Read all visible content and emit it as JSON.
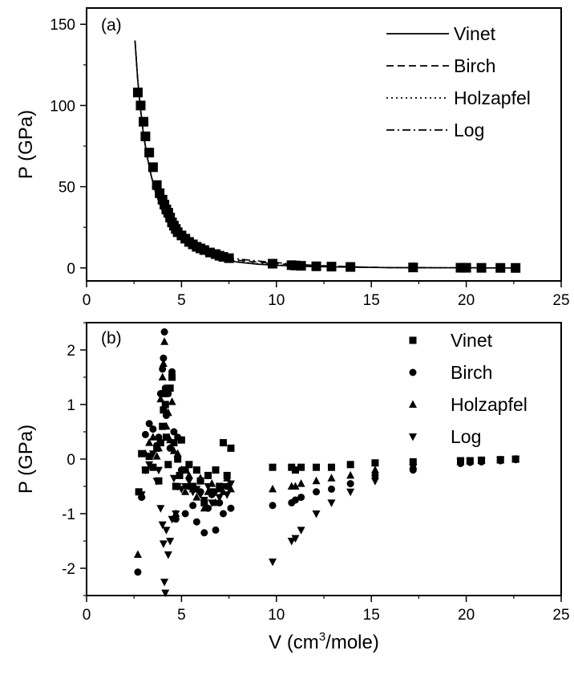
{
  "chart_data": [
    {
      "type": "line",
      "panel_label": "(a)",
      "ylabel": "P (GPa)",
      "xlabel": "",
      "xlim": [
        0,
        25
      ],
      "ylim": [
        -8,
        160
      ],
      "x_ticks": [
        "0",
        "5",
        "10",
        "15",
        "20",
        "25"
      ],
      "y_ticks": [
        "0",
        "50",
        "100",
        "150"
      ],
      "legend_position": "top-right",
      "series": [
        {
          "name": "Vinet",
          "style": "solid"
        },
        {
          "name": "Birch",
          "style": "dashed"
        },
        {
          "name": "Holzapfel",
          "style": "dotted"
        },
        {
          "name": "Log",
          "style": "dash-dot"
        }
      ],
      "curve": {
        "x": [
          2.55,
          2.7,
          2.85,
          3.0,
          3.2,
          3.4,
          3.6,
          3.8,
          4.0,
          4.3,
          4.6,
          5.0,
          5.5,
          6.0,
          6.5,
          7.0,
          7.5,
          8.0,
          9.0,
          10.0,
          11.0,
          12.0,
          14.0,
          16.0,
          18.0,
          20.0,
          22.0,
          22.8
        ],
        "y": [
          140,
          115,
          97,
          82,
          68,
          57,
          48,
          41,
          35,
          28,
          22.5,
          17,
          12.5,
          9.5,
          7.2,
          5.6,
          4.4,
          3.5,
          2.3,
          1.6,
          1.1,
          0.8,
          0.4,
          0.2,
          0.1,
          0.05,
          0.02,
          0.0
        ]
      },
      "data_points": {
        "x": [
          2.7,
          2.85,
          3.0,
          3.1,
          3.3,
          3.5,
          3.7,
          3.85,
          4.0,
          4.1,
          4.2,
          4.3,
          4.4,
          4.5,
          4.6,
          4.7,
          4.8,
          5.0,
          5.2,
          5.4,
          5.6,
          5.8,
          6.0,
          6.2,
          6.5,
          6.8,
          7.0,
          7.2,
          7.5,
          9.8,
          10.8,
          11.0,
          11.3,
          12.1,
          12.9,
          13.9,
          17.2,
          19.7,
          20.0,
          20.8,
          21.8,
          22.6
        ],
        "y": [
          108,
          100,
          90,
          81,
          71,
          62,
          51,
          46,
          42,
          39,
          36,
          34,
          31,
          28,
          26,
          24,
          22,
          20,
          18,
          16,
          14.5,
          13,
          12,
          11,
          9.5,
          8.5,
          7.5,
          6.8,
          6,
          2.6,
          1.7,
          1.5,
          1.3,
          1.0,
          0.8,
          0.6,
          0.3,
          0.1,
          0.1,
          0.05,
          0.02,
          0.0
        ]
      },
      "birch_offset": [
        [
          6,
          0.3
        ],
        [
          7,
          0.8
        ],
        [
          8,
          1.2
        ],
        [
          9,
          1.2
        ],
        [
          10,
          1.0
        ],
        [
          11,
          0.7
        ],
        [
          12,
          0.5
        ],
        [
          14,
          0.2
        ]
      ],
      "log_offset": [
        [
          5,
          0.3
        ],
        [
          6,
          1.0
        ],
        [
          7,
          1.6
        ],
        [
          8,
          2.0
        ],
        [
          9,
          2.0
        ],
        [
          10,
          1.7
        ],
        [
          11,
          1.2
        ],
        [
          12,
          0.8
        ],
        [
          14,
          0.3
        ]
      ]
    },
    {
      "type": "scatter",
      "panel_label": "(b)",
      "ylabel": "P (GPa)",
      "xlabel": "V (cm3/mole)",
      "xlim": [
        0,
        25
      ],
      "ylim": [
        -2.5,
        2.5
      ],
      "x_ticks": [
        "0",
        "5",
        "10",
        "15",
        "20",
        "25"
      ],
      "y_ticks": [
        "-2",
        "-1",
        "0",
        "1",
        "2"
      ],
      "legend_position": "top-right",
      "series": [
        {
          "name": "Vinet",
          "marker": "square",
          "points": [
            [
              2.75,
              -0.6
            ],
            [
              2.9,
              0.1
            ],
            [
              3.1,
              -0.2
            ],
            [
              3.3,
              0.05
            ],
            [
              3.5,
              -0.15
            ],
            [
              3.7,
              0.2
            ],
            [
              3.8,
              -0.4
            ],
            [
              3.9,
              0.3
            ],
            [
              4.0,
              0.6
            ],
            [
              4.05,
              0.9
            ],
            [
              4.1,
              1.2
            ],
            [
              4.15,
              1.0
            ],
            [
              4.2,
              0.4
            ],
            [
              4.3,
              -0.1
            ],
            [
              4.4,
              1.3
            ],
            [
              4.5,
              1.5
            ],
            [
              4.6,
              0.3
            ],
            [
              4.7,
              -0.5
            ],
            [
              4.8,
              0.0
            ],
            [
              4.9,
              -0.3
            ],
            [
              5.0,
              0.35
            ],
            [
              5.2,
              -0.2
            ],
            [
              5.4,
              -0.1
            ],
            [
              5.6,
              -0.5
            ],
            [
              5.8,
              -0.2
            ],
            [
              6.0,
              -0.4
            ],
            [
              6.2,
              -0.8
            ],
            [
              6.4,
              -0.3
            ],
            [
              6.6,
              -0.6
            ],
            [
              6.8,
              -0.2
            ],
            [
              7.0,
              -0.5
            ],
            [
              7.2,
              0.3
            ],
            [
              7.4,
              -0.3
            ],
            [
              7.6,
              0.2
            ],
            [
              9.8,
              -0.15
            ],
            [
              10.8,
              -0.15
            ],
            [
              11.0,
              -0.2
            ],
            [
              11.3,
              -0.15
            ],
            [
              12.1,
              -0.15
            ],
            [
              12.9,
              -0.15
            ],
            [
              13.9,
              -0.1
            ],
            [
              15.2,
              -0.07
            ],
            [
              17.2,
              -0.05
            ],
            [
              19.7,
              -0.03
            ],
            [
              20.2,
              -0.03
            ],
            [
              20.8,
              -0.02
            ],
            [
              21.8,
              -0.01
            ],
            [
              22.6,
              0.0
            ]
          ]
        },
        {
          "name": "Birch",
          "marker": "circle",
          "points": [
            [
              2.7,
              -2.07
            ],
            [
              2.9,
              -0.7
            ],
            [
              3.1,
              0.45
            ],
            [
              3.3,
              0.65
            ],
            [
              3.5,
              0.55
            ],
            [
              3.7,
              0.25
            ],
            [
              3.8,
              0.4
            ],
            [
              3.9,
              1.2
            ],
            [
              4.0,
              1.65
            ],
            [
              4.05,
              1.85
            ],
            [
              4.1,
              2.33
            ],
            [
              4.15,
              1.3
            ],
            [
              4.2,
              0.8
            ],
            [
              4.3,
              1.2
            ],
            [
              4.4,
              0.2
            ],
            [
              4.5,
              1.6
            ],
            [
              4.6,
              0.5
            ],
            [
              4.7,
              -1.1
            ],
            [
              4.8,
              0.4
            ],
            [
              5.0,
              -0.2
            ],
            [
              5.2,
              -1.0
            ],
            [
              5.4,
              -0.5
            ],
            [
              5.6,
              -0.85
            ],
            [
              5.8,
              -1.15
            ],
            [
              6.0,
              -0.6
            ],
            [
              6.2,
              -1.35
            ],
            [
              6.4,
              -0.9
            ],
            [
              6.6,
              -0.65
            ],
            [
              6.8,
              -1.3
            ],
            [
              7.0,
              -0.8
            ],
            [
              7.2,
              -1.0
            ],
            [
              7.4,
              -0.5
            ],
            [
              7.6,
              -0.9
            ],
            [
              9.8,
              -0.85
            ],
            [
              10.8,
              -0.8
            ],
            [
              11.0,
              -0.75
            ],
            [
              11.3,
              -0.7
            ],
            [
              12.1,
              -0.6
            ],
            [
              12.9,
              -0.55
            ],
            [
              13.9,
              -0.45
            ],
            [
              15.2,
              -0.3
            ],
            [
              17.2,
              -0.2
            ],
            [
              19.7,
              -0.08
            ],
            [
              20.2,
              -0.06
            ],
            [
              20.8,
              -0.05
            ],
            [
              21.8,
              -0.03
            ],
            [
              22.6,
              -0.01
            ]
          ]
        },
        {
          "name": "Holzapfel",
          "marker": "triangle-up",
          "points": [
            [
              2.7,
              -1.75
            ],
            [
              2.9,
              -0.65
            ],
            [
              3.1,
              0.1
            ],
            [
              3.3,
              0.3
            ],
            [
              3.5,
              0.4
            ],
            [
              3.7,
              0.05
            ],
            [
              3.8,
              0.2
            ],
            [
              3.9,
              1.1
            ],
            [
              4.0,
              1.5
            ],
            [
              4.05,
              1.75
            ],
            [
              4.1,
              2.15
            ],
            [
              4.15,
              1.2
            ],
            [
              4.2,
              0.6
            ],
            [
              4.3,
              0.85
            ],
            [
              4.4,
              0.35
            ],
            [
              4.5,
              1.05
            ],
            [
              4.6,
              0.15
            ],
            [
              4.7,
              -1.0
            ],
            [
              4.8,
              0.1
            ],
            [
              5.0,
              -0.2
            ],
            [
              5.2,
              -0.6
            ],
            [
              5.4,
              -0.3
            ],
            [
              5.6,
              -0.55
            ],
            [
              5.8,
              -0.7
            ],
            [
              6.0,
              -0.35
            ],
            [
              6.2,
              -0.9
            ],
            [
              6.4,
              -0.6
            ],
            [
              6.6,
              -0.45
            ],
            [
              6.8,
              -0.8
            ],
            [
              7.0,
              -0.55
            ],
            [
              7.2,
              -0.6
            ],
            [
              7.4,
              -0.35
            ],
            [
              7.6,
              -0.55
            ],
            [
              9.8,
              -0.55
            ],
            [
              10.8,
              -0.5
            ],
            [
              11.0,
              -0.5
            ],
            [
              11.3,
              -0.45
            ],
            [
              12.1,
              -0.4
            ],
            [
              12.9,
              -0.35
            ],
            [
              13.9,
              -0.3
            ],
            [
              15.2,
              -0.2
            ],
            [
              17.2,
              -0.12
            ],
            [
              19.7,
              -0.05
            ],
            [
              20.2,
              -0.04
            ],
            [
              20.8,
              -0.03
            ],
            [
              21.8,
              -0.02
            ],
            [
              22.6,
              0.0
            ]
          ]
        },
        {
          "name": "Log",
          "marker": "triangle-down",
          "points": [
            [
              2.9,
              -0.65
            ],
            [
              3.1,
              -0.2
            ],
            [
              3.3,
              -0.1
            ],
            [
              3.5,
              0.1
            ],
            [
              3.7,
              -0.4
            ],
            [
              3.8,
              -0.2
            ],
            [
              3.9,
              -0.9
            ],
            [
              4.0,
              -1.2
            ],
            [
              4.05,
              -1.55
            ],
            [
              4.1,
              -2.25
            ],
            [
              4.15,
              -2.45
            ],
            [
              4.2,
              -1.3
            ],
            [
              4.3,
              -1.75
            ],
            [
              4.4,
              -1.5
            ],
            [
              4.5,
              -1.1
            ],
            [
              4.6,
              -0.35
            ],
            [
              4.7,
              -1.0
            ],
            [
              4.8,
              -0.5
            ],
            [
              5.0,
              -0.55
            ],
            [
              5.2,
              -0.5
            ],
            [
              5.4,
              -0.4
            ],
            [
              5.6,
              -0.6
            ],
            [
              5.8,
              -0.55
            ],
            [
              6.0,
              -0.65
            ],
            [
              6.2,
              -0.75
            ],
            [
              6.4,
              -0.5
            ],
            [
              6.6,
              -0.8
            ],
            [
              6.8,
              -0.6
            ],
            [
              7.0,
              -0.7
            ],
            [
              7.2,
              -0.5
            ],
            [
              7.4,
              -0.65
            ],
            [
              7.6,
              -0.45
            ],
            [
              9.8,
              -1.88
            ],
            [
              10.8,
              -1.5
            ],
            [
              11.0,
              -1.45
            ],
            [
              11.3,
              -1.3
            ],
            [
              12.1,
              -1.0
            ],
            [
              12.9,
              -0.8
            ],
            [
              13.9,
              -0.6
            ],
            [
              15.2,
              -0.4
            ],
            [
              17.2,
              -0.15
            ],
            [
              19.7,
              -0.05
            ],
            [
              20.2,
              -0.04
            ],
            [
              20.8,
              -0.03
            ],
            [
              21.8,
              -0.02
            ],
            [
              22.6,
              0.0
            ]
          ]
        }
      ]
    }
  ]
}
